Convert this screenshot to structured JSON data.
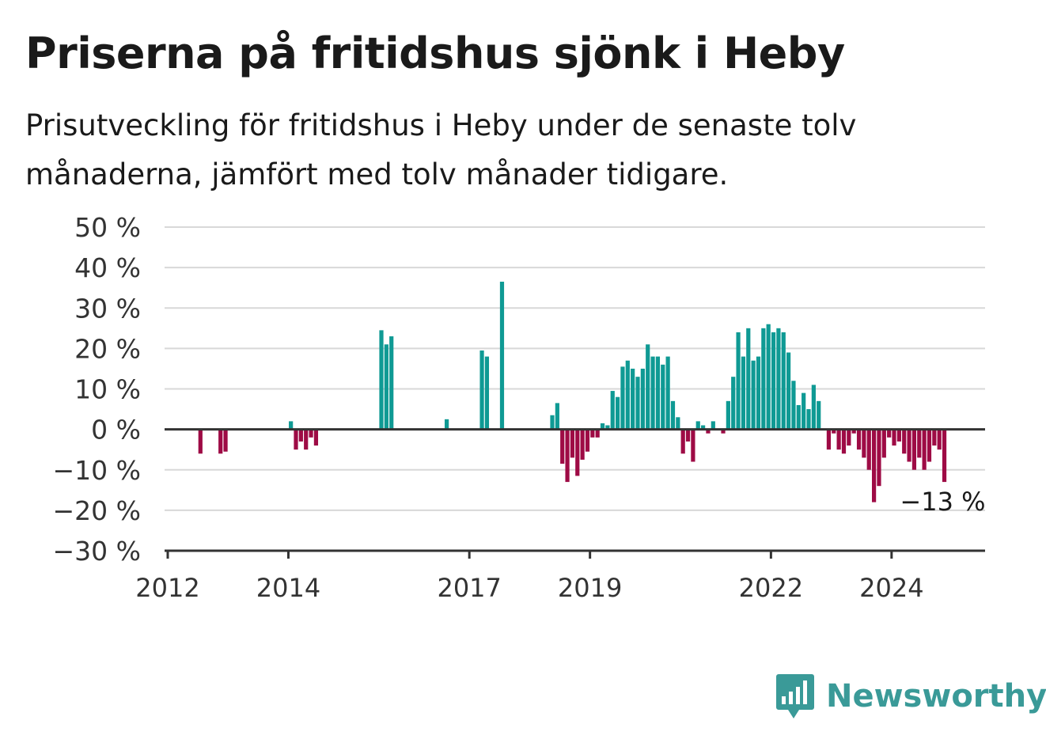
{
  "title": "Priserna på fritidshus sjönk i Heby",
  "subtitle": "Prisutveckling för fritidshus i Heby under de senaste tolv månaderna, jämfört med tolv månader tidigare.",
  "brand": {
    "name": "Newsworthy",
    "icon": "newsworthy-logo-icon",
    "color": "#3a9a98"
  },
  "colors": {
    "positive": "#0f9a94",
    "negative": "#9e0b45",
    "grid": "#d8d8d8",
    "axis": "#333333"
  },
  "chart_data": {
    "type": "bar",
    "title": "Priserna på fritidshus sjönk i Heby",
    "xlabel": "",
    "ylabel": "",
    "ylim": [
      -30,
      50
    ],
    "y_ticks": [
      -30,
      -20,
      -10,
      0,
      10,
      20,
      30,
      40,
      50
    ],
    "y_tick_labels": [
      "−30 %",
      "−20 %",
      "−10 %",
      "0 %",
      "10 %",
      "20 %",
      "30 %",
      "40 %",
      "50 %"
    ],
    "x_ticks": [
      "2012",
      "2014",
      "2017",
      "2019",
      "2022",
      "2024"
    ],
    "grid": true,
    "series": [
      {
        "values": [
          [
            "2012-07",
            -6
          ],
          [
            "2012-11",
            -6
          ],
          [
            "2012-12",
            -5.5
          ],
          [
            "2014-01",
            2
          ],
          [
            "2014-02",
            -5
          ],
          [
            "2014-03",
            -3
          ],
          [
            "2014-04",
            -5
          ],
          [
            "2014-05",
            -2
          ],
          [
            "2014-06",
            -4
          ],
          [
            "2015-07",
            24.5
          ],
          [
            "2015-08",
            21
          ],
          [
            "2015-09",
            23
          ],
          [
            "2016-08",
            2.5
          ],
          [
            "2017-03",
            19.5
          ],
          [
            "2017-04",
            18
          ],
          [
            "2017-07",
            36.5
          ],
          [
            "2018-05",
            3.5
          ],
          [
            "2018-06",
            6.5
          ],
          [
            "2018-07",
            -8.5
          ],
          [
            "2018-08",
            -13
          ],
          [
            "2018-09",
            -7
          ],
          [
            "2018-10",
            -11.5
          ],
          [
            "2018-11",
            -7.5
          ],
          [
            "2018-12",
            -5.5
          ],
          [
            "2019-01",
            -2
          ],
          [
            "2019-02",
            -2
          ],
          [
            "2019-03",
            1.5
          ],
          [
            "2019-04",
            1
          ],
          [
            "2019-05",
            9.5
          ],
          [
            "2019-06",
            8
          ],
          [
            "2019-07",
            15.5
          ],
          [
            "2019-08",
            17
          ],
          [
            "2019-09",
            15
          ],
          [
            "2019-10",
            13
          ],
          [
            "2019-11",
            15
          ],
          [
            "2019-12",
            21
          ],
          [
            "2020-01",
            18
          ],
          [
            "2020-02",
            18
          ],
          [
            "2020-03",
            16
          ],
          [
            "2020-04",
            18
          ],
          [
            "2020-05",
            7
          ],
          [
            "2020-06",
            3
          ],
          [
            "2020-07",
            -6
          ],
          [
            "2020-08",
            -3
          ],
          [
            "2020-09",
            -8
          ],
          [
            "2020-10",
            2
          ],
          [
            "2020-11",
            1
          ],
          [
            "2020-12",
            -1
          ],
          [
            "2021-01",
            2
          ],
          [
            "2021-03",
            -1
          ],
          [
            "2021-04",
            7
          ],
          [
            "2021-05",
            13
          ],
          [
            "2021-06",
            24
          ],
          [
            "2021-07",
            18
          ],
          [
            "2021-08",
            25
          ],
          [
            "2021-09",
            17
          ],
          [
            "2021-10",
            18
          ],
          [
            "2021-11",
            25
          ],
          [
            "2021-12",
            26
          ],
          [
            "2022-01",
            24
          ],
          [
            "2022-02",
            25
          ],
          [
            "2022-03",
            24
          ],
          [
            "2022-04",
            19
          ],
          [
            "2022-05",
            12
          ],
          [
            "2022-06",
            6
          ],
          [
            "2022-07",
            9
          ],
          [
            "2022-08",
            5
          ],
          [
            "2022-09",
            11
          ],
          [
            "2022-10",
            7
          ],
          [
            "2022-12",
            -5
          ],
          [
            "2023-01",
            -1
          ],
          [
            "2023-02",
            -5
          ],
          [
            "2023-03",
            -6
          ],
          [
            "2023-04",
            -4
          ],
          [
            "2023-05",
            -1
          ],
          [
            "2023-06",
            -5
          ],
          [
            "2023-07",
            -7
          ],
          [
            "2023-08",
            -10
          ],
          [
            "2023-09",
            -18
          ],
          [
            "2023-10",
            -14
          ],
          [
            "2023-11",
            -7
          ],
          [
            "2023-12",
            -2
          ],
          [
            "2024-01",
            -4
          ],
          [
            "2024-02",
            -3
          ],
          [
            "2024-03",
            -6
          ],
          [
            "2024-04",
            -8
          ],
          [
            "2024-05",
            -10
          ],
          [
            "2024-06",
            -7
          ],
          [
            "2024-07",
            -10
          ],
          [
            "2024-08",
            -8
          ],
          [
            "2024-09",
            -4
          ],
          [
            "2024-10",
            -5
          ],
          [
            "2024-11",
            -13
          ]
        ]
      }
    ],
    "annotations": [
      {
        "x": "2024-11",
        "y": -13,
        "text": "−13 %"
      }
    ]
  }
}
